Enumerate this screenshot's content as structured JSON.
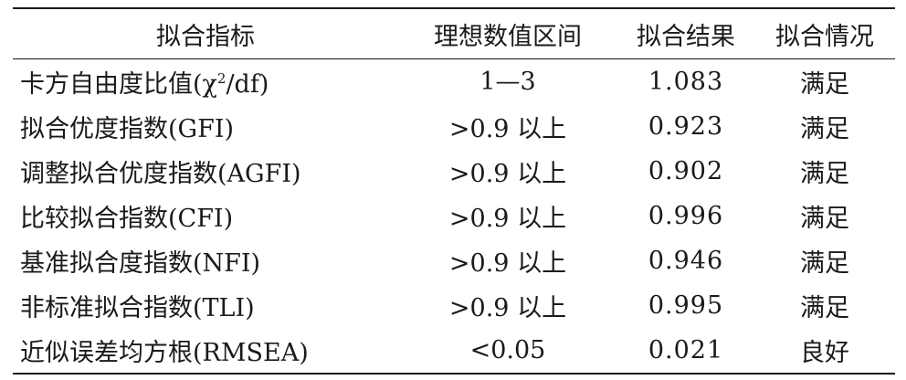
{
  "table": {
    "headers": [
      "拟合指标",
      "理想数值区间",
      "拟合结果",
      "拟合情况"
    ],
    "rows": [
      {
        "indicator": "卡方自由度比值(χ",
        "indicator_sup": "2",
        "indicator_tail": "/df)",
        "range": "1—3",
        "result": "1.083",
        "status": "满足"
      },
      {
        "indicator": "拟合优度指数(GFI)",
        "range": ">0.9 以上",
        "result": "0.923",
        "status": "满足"
      },
      {
        "indicator": "调整拟合优度指数(AGFI)",
        "range": ">0.9 以上",
        "result": "0.902",
        "status": "满足"
      },
      {
        "indicator": "比较拟合指数(CFI)",
        "range": ">0.9 以上",
        "result": "0.996",
        "status": "满足"
      },
      {
        "indicator": "基准拟合度指数(NFI)",
        "range": ">0.9 以上",
        "result": "0.946",
        "status": "满足"
      },
      {
        "indicator": "非标准拟合指数(TLI)",
        "range": ">0.9 以上",
        "result": "0.995",
        "status": "满足"
      },
      {
        "indicator": "近似误差均方根(RMSEA)",
        "range": "<0.05",
        "result": "0.021",
        "status": "良好"
      }
    ]
  }
}
